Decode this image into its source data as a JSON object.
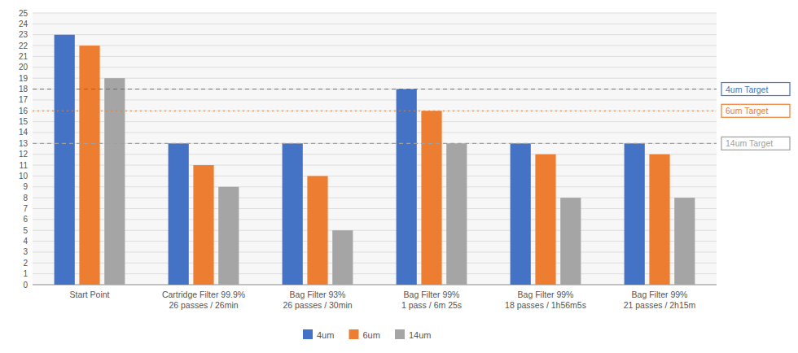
{
  "chart_data": {
    "type": "bar",
    "categories": [
      "Start Point",
      "Cartridge Filter 99.9%\n26 passes / 26min",
      "Bag Filter 93%\n26 passes / 30min",
      "Bag Filter 99%\n1 pass / 6m 25s",
      "Bag Filter 99%\n18 passes / 1h56m5s",
      "Bag Filter 99%\n21 passes / 2h15m"
    ],
    "series": [
      {
        "name": "4um",
        "color": "#4472c4",
        "values": [
          23,
          13,
          13,
          18,
          13,
          13
        ]
      },
      {
        "name": "6um",
        "color": "#ed7d31",
        "values": [
          22,
          11,
          10,
          16,
          12,
          12
        ]
      },
      {
        "name": "14um",
        "color": "#a5a5a5",
        "values": [
          19,
          9,
          5,
          13,
          8,
          8
        ]
      }
    ],
    "annotations": [
      {
        "text": "4um Target",
        "y": 18,
        "color": "#4472c4",
        "line_style": "dashed"
      },
      {
        "text": "6um Target",
        "y": 16,
        "color": "#ed7d31",
        "line_style": "dotted"
      },
      {
        "text": "14um Target",
        "y": 13,
        "color": "#a0a0a0",
        "line_style": "dashed"
      }
    ],
    "ylim": [
      0,
      25
    ],
    "yticks": [
      0,
      1,
      2,
      3,
      4,
      5,
      6,
      7,
      8,
      9,
      10,
      11,
      12,
      13,
      14,
      15,
      16,
      17,
      18,
      19,
      20,
      21,
      22,
      23,
      24,
      25
    ],
    "grid": true,
    "legend": "bottom"
  }
}
